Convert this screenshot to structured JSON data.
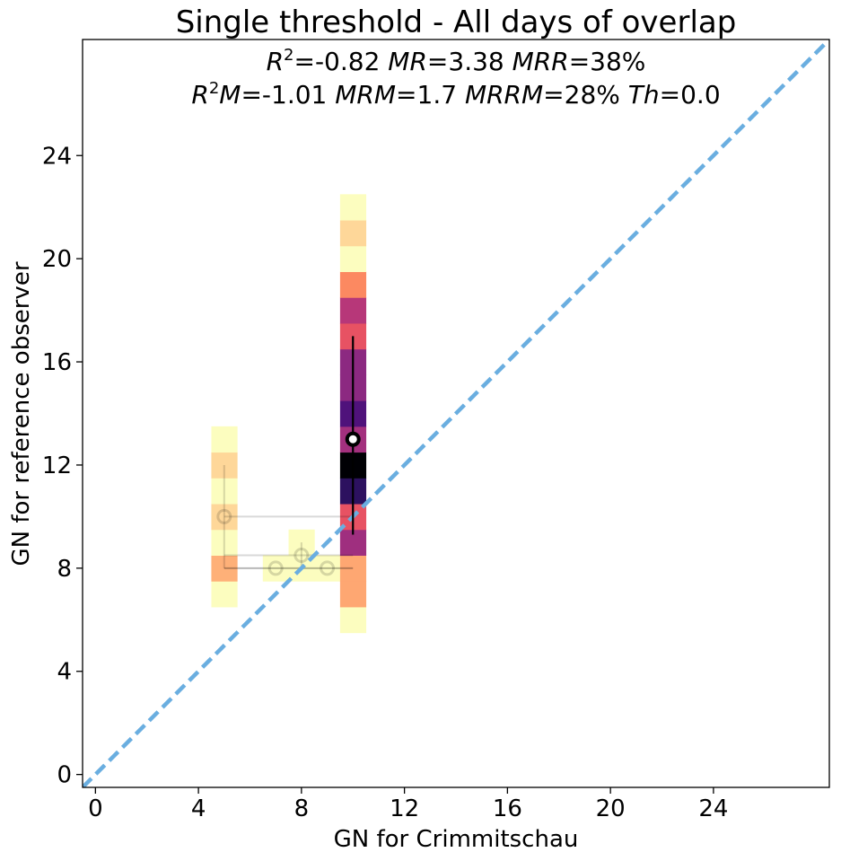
{
  "chart_data": {
    "type": "heatmap",
    "title": "Single threshold - All days of overlap",
    "stats_line1": {
      "r2_label": "R",
      "r2_sup": "2",
      "r2_value": "=-0.82 ",
      "mr_label": "MR",
      "mr_value": "=3.38 ",
      "mrr_label": "MRR",
      "mrr_value": "=38%"
    },
    "stats_line2": {
      "r2m_label": "R",
      "r2m_sup": "2",
      "r2m_mid": "M",
      "r2m_value": "=-1.01 ",
      "mrm_label": "MRM",
      "mrm_value": "=1.7 ",
      "mrrm_label": "MRRM",
      "mrrm_value": "=28% ",
      "th_label": "Th",
      "th_value": "=0.0"
    },
    "xlabel": "GN for Crimmitschau",
    "ylabel": "GN for reference observer",
    "xlim": [
      -0.5,
      28.5
    ],
    "ylim": [
      -0.5,
      28.5
    ],
    "xticks": [
      0,
      4,
      8,
      12,
      16,
      20,
      24
    ],
    "yticks": [
      0,
      4,
      8,
      12,
      16,
      20,
      24
    ],
    "colors": {
      "diagonal": "#6aaee0",
      "frame": "#000000",
      "marker_face": "#ffffff",
      "marker_edge": "#000000"
    },
    "cell_size": 1,
    "cells": [
      {
        "x": 5,
        "y": 7,
        "color": "#fcfdbf"
      },
      {
        "x": 5,
        "y": 8,
        "color": "#feb078"
      },
      {
        "x": 5,
        "y": 9,
        "color": "#fcfdbf"
      },
      {
        "x": 5,
        "y": 10,
        "color": "#fed799"
      },
      {
        "x": 5,
        "y": 11,
        "color": "#fcfdbf"
      },
      {
        "x": 5,
        "y": 12,
        "color": "#fed799"
      },
      {
        "x": 5,
        "y": 13,
        "color": "#fcfdbf"
      },
      {
        "x": 7,
        "y": 8,
        "color": "#fcfdbf"
      },
      {
        "x": 8,
        "y": 8,
        "color": "#fcfdbf"
      },
      {
        "x": 8,
        "y": 9,
        "color": "#fcfdbf"
      },
      {
        "x": 9,
        "y": 8,
        "color": "#fcfdbf"
      },
      {
        "x": 10,
        "y": 6,
        "color": "#fcfdbf"
      },
      {
        "x": 10,
        "y": 7,
        "color": "#fea772"
      },
      {
        "x": 10,
        "y": 8,
        "color": "#fea772"
      },
      {
        "x": 10,
        "y": 9,
        "color": "#9f2f7f"
      },
      {
        "x": 10,
        "y": 10,
        "color": "#e75263"
      },
      {
        "x": 10,
        "y": 11,
        "color": "#2c115f"
      },
      {
        "x": 10,
        "y": 12,
        "color": "#000004"
      },
      {
        "x": 10,
        "y": 13,
        "color": "#a3307e"
      },
      {
        "x": 10,
        "y": 14,
        "color": "#4f127b"
      },
      {
        "x": 10,
        "y": 15,
        "color": "#8c2981"
      },
      {
        "x": 10,
        "y": 16,
        "color": "#8c2981"
      },
      {
        "x": 10,
        "y": 17,
        "color": "#e75263"
      },
      {
        "x": 10,
        "y": 18,
        "color": "#b73779"
      },
      {
        "x": 10,
        "y": 19,
        "color": "#fc8961"
      },
      {
        "x": 10,
        "y": 20,
        "color": "#fcfdbf"
      },
      {
        "x": 10,
        "y": 21,
        "color": "#fed799"
      },
      {
        "x": 10,
        "y": 22,
        "color": "#fcfdbf"
      }
    ],
    "faint_points": [
      {
        "x": 5,
        "y": 10,
        "ylow": 8,
        "yhigh": 12,
        "xlow": 5,
        "xhigh": 10
      },
      {
        "x": 7,
        "y": 8,
        "ylow": 8,
        "yhigh": 8,
        "xlow": 5,
        "xhigh": 10
      },
      {
        "x": 8,
        "y": 8.5,
        "ylow": 8,
        "yhigh": 9,
        "xlow": 5,
        "xhigh": 10
      },
      {
        "x": 9,
        "y": 8,
        "ylow": 8,
        "yhigh": 8,
        "xlow": 5,
        "xhigh": 10
      }
    ],
    "main_point": {
      "x": 10,
      "y": 13,
      "ylow": 9.3,
      "yhigh": 17
    }
  }
}
